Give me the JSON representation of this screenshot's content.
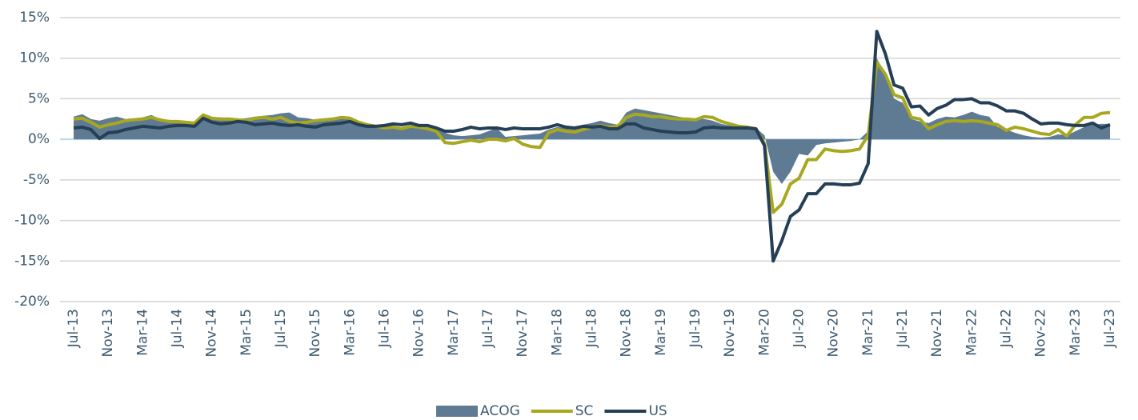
{
  "chart_data": {
    "type": "line",
    "categories": [
      "Jul-13",
      null,
      null,
      null,
      "Nov-13",
      null,
      null,
      null,
      "Mar-14",
      null,
      null,
      null,
      "Jul-14",
      null,
      null,
      null,
      "Nov-14",
      null,
      null,
      null,
      "Mar-15",
      null,
      null,
      null,
      "Jul-15",
      null,
      null,
      null,
      "Nov-15",
      null,
      null,
      null,
      "Mar-16",
      null,
      null,
      null,
      "Jul-16",
      null,
      null,
      null,
      "Nov-16",
      null,
      null,
      null,
      "Mar-17",
      null,
      null,
      null,
      "Jul-17",
      null,
      null,
      null,
      "Nov-17",
      null,
      null,
      null,
      "Mar-18",
      null,
      null,
      null,
      "Jul-18",
      null,
      null,
      null,
      "Nov-18",
      null,
      null,
      null,
      "Mar-19",
      null,
      null,
      null,
      "Jul-19",
      null,
      null,
      null,
      "Nov-19",
      null,
      null,
      null,
      "Mar-20",
      null,
      null,
      null,
      "Jul-20",
      null,
      null,
      null,
      "Nov-20",
      null,
      null,
      null,
      "Mar-21",
      null,
      null,
      null,
      "Jul-21",
      null,
      null,
      null,
      "Nov-21",
      null,
      null,
      null,
      "Mar-22",
      null,
      null,
      null,
      "Jul-22",
      null,
      null,
      null,
      "Nov-22",
      null,
      null,
      null,
      "Mar-23",
      null,
      null,
      null,
      "Jul-23"
    ],
    "series": [
      {
        "name": "ACOG",
        "type": "area",
        "color": "#5f7b93",
        "values": [
          2.8,
          3.1,
          2.5,
          2.3,
          2.6,
          2.8,
          2.5,
          2.6,
          2.7,
          3.0,
          2.5,
          2.4,
          2.3,
          2.2,
          2.1,
          2.8,
          2.6,
          2.7,
          2.6,
          2.5,
          2.6,
          2.8,
          2.9,
          3.0,
          3.2,
          3.3,
          2.7,
          2.6,
          2.4,
          2.4,
          2.5,
          2.8,
          2.6,
          2.0,
          1.8,
          1.7,
          1.6,
          1.4,
          1.5,
          1.7,
          1.5,
          1.4,
          1.2,
          0.8,
          0.5,
          0.4,
          0.5,
          0.6,
          1.0,
          1.4,
          0.3,
          0.4,
          0.5,
          0.6,
          0.7,
          1.2,
          1.5,
          1.4,
          1.5,
          1.8,
          2.0,
          2.3,
          2.0,
          1.8,
          3.3,
          3.8,
          3.6,
          3.4,
          3.2,
          3.0,
          2.8,
          2.6,
          2.6,
          2.5,
          2.3,
          1.9,
          1.7,
          1.5,
          1.5,
          1.4,
          0.5,
          -4,
          -5.5,
          -4,
          -1.8,
          -2,
          -0.7,
          -0.5,
          -0.4,
          -0.3,
          -0.2,
          0,
          1,
          10,
          8,
          5,
          4.5,
          2.5,
          2.2,
          2.0,
          2.5,
          2.8,
          2.7,
          3.0,
          3.4,
          3.0,
          2.8,
          1.5,
          1.2,
          0.8,
          0.5,
          0.3,
          0.2,
          0.3,
          0.6,
          0.5,
          1.0,
          1.5,
          1.8,
          1.9,
          1.9
        ]
      },
      {
        "name": "SC",
        "type": "line",
        "color": "#a8a820",
        "values": [
          2.5,
          2.6,
          2.1,
          1.5,
          1.8,
          2.0,
          2.3,
          2.4,
          2.5,
          2.7,
          2.4,
          2.2,
          2.2,
          2.1,
          2.0,
          3.0,
          2.6,
          2.5,
          2.5,
          2.4,
          2.3,
          2.6,
          2.7,
          2.5,
          2.7,
          2.2,
          2.0,
          2.1,
          2.3,
          2.4,
          2.5,
          2.7,
          2.6,
          2.1,
          1.8,
          1.6,
          1.4,
          1.5,
          1.3,
          1.6,
          1.5,
          1.3,
          1.0,
          -0.4,
          -0.5,
          -0.3,
          -0.1,
          -0.3,
          0,
          0,
          -0.2,
          0.1,
          -0.6,
          -0.9,
          -1.0,
          0.8,
          1.2,
          1.0,
          0.9,
          1.2,
          1.5,
          1.7,
          1.5,
          1.6,
          2.7,
          3.1,
          3.0,
          2.8,
          2.8,
          2.6,
          2.5,
          2.5,
          2.4,
          2.8,
          2.7,
          2.2,
          1.9,
          1.6,
          1.5,
          1.3,
          -0.5,
          -9,
          -8,
          -5.5,
          -4.8,
          -2.5,
          -2.5,
          -1.2,
          -1.4,
          -1.5,
          -1.4,
          -1.2,
          0.5,
          9.5,
          8,
          5.5,
          5.1,
          2.7,
          2.5,
          1.3,
          1.8,
          2.2,
          2.3,
          2.2,
          2.3,
          2.2,
          2.0,
          1.8,
          1.1,
          1.5,
          1.3,
          1.0,
          0.7,
          0.6,
          1.2,
          0.4,
          1.8,
          2.7,
          2.7,
          3.2,
          3.3
        ]
      },
      {
        "name": "US",
        "type": "line",
        "color": "#243f56",
        "values": [
          1.4,
          1.5,
          1.2,
          0.1,
          0.8,
          0.9,
          1.2,
          1.4,
          1.6,
          1.5,
          1.4,
          1.6,
          1.7,
          1.7,
          1.6,
          2.6,
          2.1,
          1.9,
          2.0,
          2.2,
          2.1,
          1.8,
          1.9,
          2.0,
          1.8,
          1.7,
          1.8,
          1.6,
          1.5,
          1.8,
          1.9,
          2.0,
          2.2,
          1.8,
          1.6,
          1.6,
          1.7,
          1.9,
          1.8,
          2.0,
          1.7,
          1.7,
          1.4,
          1.0,
          1.0,
          1.2,
          1.5,
          1.3,
          1.4,
          1.4,
          1.2,
          1.4,
          1.3,
          1.3,
          1.3,
          1.5,
          1.8,
          1.5,
          1.4,
          1.6,
          1.5,
          1.6,
          1.3,
          1.3,
          1.9,
          1.9,
          1.4,
          1.2,
          1.0,
          0.9,
          0.8,
          0.8,
          0.9,
          1.4,
          1.5,
          1.4,
          1.4,
          1.4,
          1.4,
          1.3,
          -0.8,
          -15,
          -12.5,
          -9.5,
          -8.7,
          -6.7,
          -6.7,
          -5.5,
          -5.5,
          -5.6,
          -5.6,
          -5.4,
          -3,
          13.3,
          10.5,
          6.7,
          6.3,
          4.0,
          4.1,
          3.0,
          3.8,
          4.2,
          4.9,
          4.9,
          5.0,
          4.5,
          4.5,
          4.1,
          3.5,
          3.5,
          3.2,
          2.5,
          1.9,
          2.0,
          2.0,
          1.8,
          1.7,
          1.7,
          2.0,
          1.4,
          1.8
        ]
      }
    ],
    "ylim": [
      -20,
      15
    ],
    "yticks": [
      {
        "value": -20,
        "label": "-20%"
      },
      {
        "value": -15,
        "label": "-15%"
      },
      {
        "value": -10,
        "label": "-10%"
      },
      {
        "value": -5,
        "label": "-5%"
      },
      {
        "value": 0,
        "label": "0%"
      },
      {
        "value": 5,
        "label": "5%"
      },
      {
        "value": 10,
        "label": "10%"
      },
      {
        "value": 15,
        "label": "15%"
      }
    ],
    "grid": true,
    "legend": "bottom"
  }
}
